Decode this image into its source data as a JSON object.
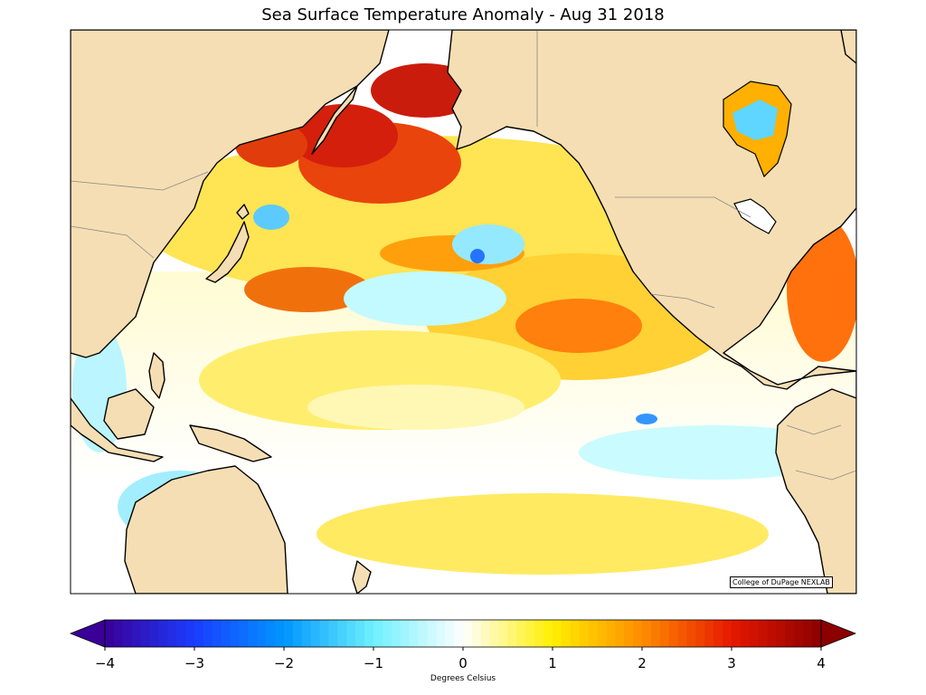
{
  "map": {
    "title": "Sea Surface Temperature Anomaly - Aug 31 2018",
    "credit": "College of DuPage NEXLAB",
    "colors": {
      "land": "#f5deb3",
      "coast": "#000000",
      "border": "#888888"
    },
    "colorbar": {
      "label": "Degrees Celsius",
      "ticks": [
        "−4",
        "−3",
        "−2",
        "−1",
        "0",
        "1",
        "2",
        "3",
        "4"
      ],
      "stops": [
        {
          "v": -4,
          "c": "#3a0098"
        },
        {
          "v": -3,
          "c": "#1a3cff"
        },
        {
          "v": -2,
          "c": "#0096ff"
        },
        {
          "v": -1,
          "c": "#6ef0ff"
        },
        {
          "v": 0,
          "c": "#ffffff"
        },
        {
          "v": 1,
          "c": "#ffef00"
        },
        {
          "v": 2,
          "c": "#ff8c00"
        },
        {
          "v": 3,
          "c": "#e61800"
        },
        {
          "v": 4,
          "c": "#8c0000"
        }
      ]
    }
  }
}
